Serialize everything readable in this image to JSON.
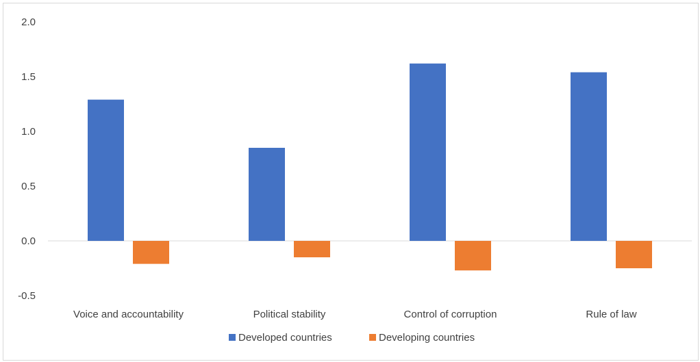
{
  "chart_data": {
    "type": "bar",
    "title": "",
    "xlabel": "",
    "ylabel": "",
    "categories": [
      "Voice and accountability",
      "Political stability",
      "Control of corruption",
      "Rule of law"
    ],
    "series": [
      {
        "name": "Developed countries",
        "color": "#4472C4",
        "values": [
          1.29,
          0.85,
          1.62,
          1.54
        ]
      },
      {
        "name": "Developing countries",
        "color": "#ED7D31",
        "values": [
          -0.21,
          -0.15,
          -0.27,
          -0.25
        ]
      }
    ],
    "ylim": [
      -0.5,
      2.0
    ],
    "yticks": [
      2.0,
      1.5,
      1.0,
      0.5,
      0.0,
      -0.5
    ],
    "ytick_labels": [
      "2.0",
      "1.5",
      "1.0",
      "0.5",
      "0.0",
      "-0.5"
    ],
    "grid": false,
    "legend_position": "bottom"
  }
}
